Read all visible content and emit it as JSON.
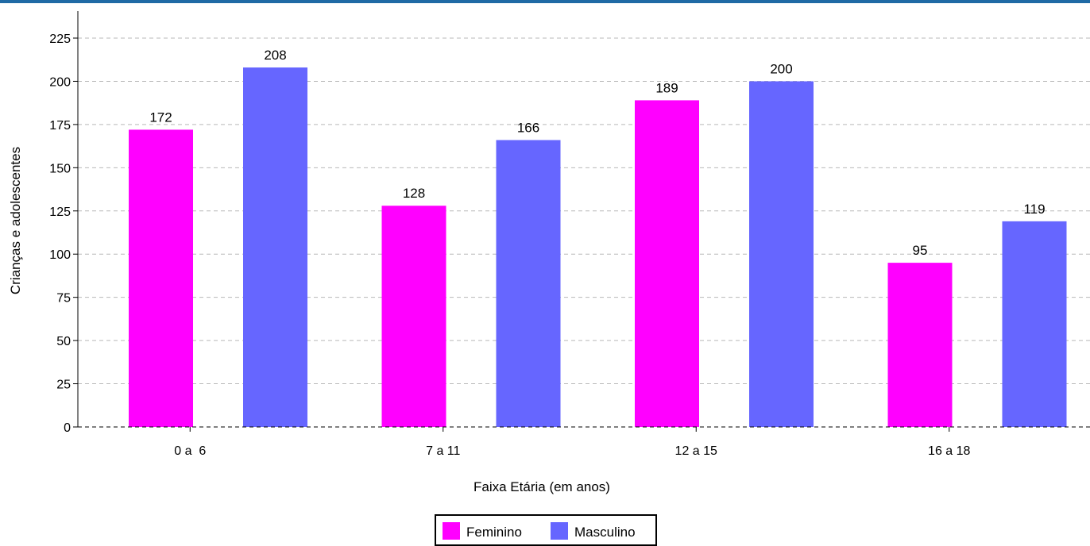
{
  "chart_data": {
    "type": "bar",
    "xlabel": "Faixa Etária (em anos)",
    "ylabel": "Crianças e adolescentes",
    "categories": [
      "0 a  6",
      "7 a 11",
      "12 a 15",
      "16 a 18"
    ],
    "series": [
      {
        "name": "Feminino",
        "color": "#ff00ff",
        "values": [
          172,
          128,
          189,
          95
        ]
      },
      {
        "name": "Masculino",
        "color": "#6666ff",
        "values": [
          208,
          166,
          200,
          119
        ]
      }
    ],
    "ylim": [
      0,
      225
    ],
    "yticks": [
      0,
      25,
      50,
      75,
      100,
      125,
      150,
      175,
      200,
      225
    ],
    "grid": true,
    "legend_position": "bottom-center"
  }
}
